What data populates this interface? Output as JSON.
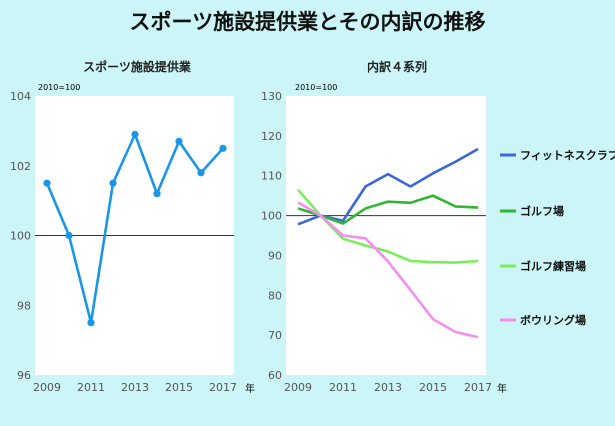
{
  "page": {
    "title": "スポーツ施設提供業とその内訳の推移"
  },
  "chart_data": [
    {
      "type": "line",
      "title": "スポーツ施設提供業",
      "base_note": "2010=100",
      "x_unit": "年",
      "x": [
        2009,
        2010,
        2011,
        2012,
        2013,
        2014,
        2015,
        2016,
        2017
      ],
      "x_ticks": [
        "2009",
        "2011",
        "2013",
        "2015",
        "2017"
      ],
      "y_ticks": [
        "96",
        "98",
        "100",
        "102",
        "104"
      ],
      "ylim": [
        96,
        104
      ],
      "reference_line": 100,
      "markers": true,
      "grid": false,
      "series": [
        {
          "color": "#1a96e6",
          "values": [
            101.5,
            100.0,
            97.5,
            101.5,
            102.9,
            101.2,
            102.7,
            101.8,
            102.5
          ]
        }
      ]
    },
    {
      "type": "line",
      "title": "内訳４系列",
      "base_note": "2010=100",
      "x_unit": "年",
      "x": [
        2009,
        2010,
        2011,
        2012,
        2013,
        2014,
        2015,
        2016,
        2017
      ],
      "x_ticks": [
        "2009",
        "2011",
        "2013",
        "2015",
        "2017"
      ],
      "y_ticks": [
        "60",
        "70",
        "80",
        "90",
        "100",
        "110",
        "120",
        "130"
      ],
      "ylim": [
        60,
        130
      ],
      "reference_line": 100,
      "legend_position": "right",
      "grid": false,
      "series": [
        {
          "name": "フィットネスクラブ",
          "color": "#3b67d8",
          "values": [
            97.8,
            100.0,
            98.7,
            107.3,
            110.4,
            107.3,
            110.6,
            113.5,
            116.7
          ]
        },
        {
          "name": "ゴルフ場",
          "color": "#2fb82f",
          "values": [
            101.8,
            100.0,
            98.0,
            101.8,
            103.5,
            103.2,
            105.0,
            102.3,
            102.0
          ]
        },
        {
          "name": "ゴルフ練習場",
          "color": "#79ee5a",
          "values": [
            106.5,
            100.0,
            94.2,
            92.5,
            91.0,
            88.6,
            88.3,
            88.2,
            88.6
          ]
        },
        {
          "name": "ボウリング場",
          "color": "#f58ef0",
          "values": [
            103.3,
            100.0,
            95.0,
            94.3,
            88.5,
            81.3,
            74.0,
            70.8,
            69.5
          ]
        }
      ]
    }
  ]
}
